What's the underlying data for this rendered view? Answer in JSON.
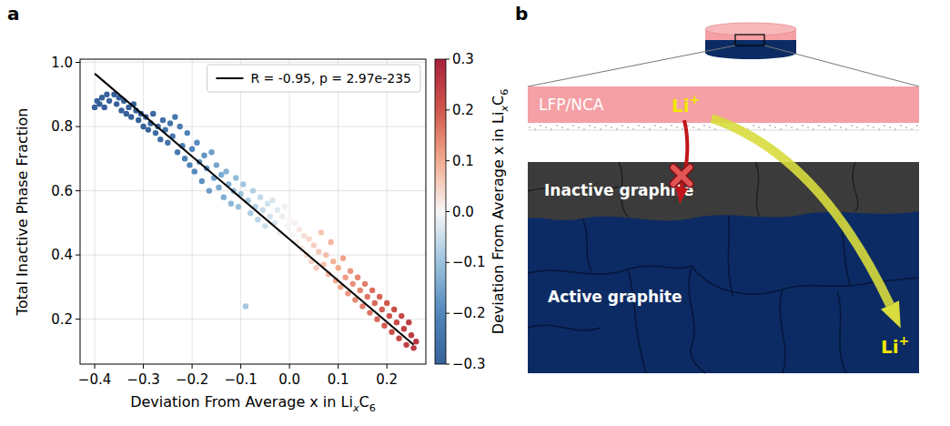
{
  "panel_labels": [
    "a",
    "b"
  ],
  "chart_data": {
    "type": "scatter",
    "xlabel": [
      "Deviation From Average x in Li",
      {
        "sub": "x",
        "italic": true
      },
      "C",
      {
        "sub": "6"
      }
    ],
    "ylabel": "Total Inactive Phase Fraction",
    "xlim": [
      -0.43,
      0.28
    ],
    "ylim": [
      0.06,
      1.01
    ],
    "xticks": [
      {
        "value": -0.4,
        "label": "−0.4"
      },
      {
        "value": -0.3,
        "label": "−0.3"
      },
      {
        "value": -0.2,
        "label": "−0.2"
      },
      {
        "value": -0.1,
        "label": "−0.1"
      },
      {
        "value": 0,
        "label": "0.0"
      },
      0.1,
      0.2
    ],
    "yticks": [
      0.2,
      0.4,
      0.6,
      0.8,
      {
        "value": 1,
        "label": "1.0"
      }
    ],
    "grid": true,
    "legend": "upper right",
    "colorbar": {
      "label": [
        "Deviation From Average x in Li",
        {
          "sub": "x",
          "italic": true
        },
        "C",
        {
          "sub": "6"
        }
      ],
      "range": [
        -0.3,
        0.3
      ],
      "ticks": [
        {
          "value": -0.3,
          "label": "−0.3"
        },
        {
          "value": -0.2,
          "label": "−0.2"
        },
        {
          "value": -0.1,
          "label": "−0.1"
        },
        {
          "value": 0,
          "label": "0.0"
        },
        0.1,
        0.2,
        0.3
      ]
    },
    "series": [
      {
        "type": "scatter",
        "marker": "circle",
        "x": [
          -0.4,
          -0.395,
          -0.39,
          -0.385,
          -0.38,
          -0.375,
          -0.37,
          -0.36,
          -0.355,
          -0.35,
          -0.345,
          -0.34,
          -0.335,
          -0.33,
          -0.325,
          -0.32,
          -0.315,
          -0.31,
          -0.305,
          -0.3,
          -0.295,
          -0.29,
          -0.285,
          -0.28,
          -0.275,
          -0.27,
          -0.265,
          -0.26,
          -0.255,
          -0.25,
          -0.245,
          -0.24,
          -0.235,
          -0.23,
          -0.225,
          -0.22,
          -0.215,
          -0.21,
          -0.205,
          -0.2,
          -0.195,
          -0.19,
          -0.185,
          -0.18,
          -0.175,
          -0.17,
          -0.165,
          -0.16,
          -0.155,
          -0.15,
          -0.145,
          -0.14,
          -0.135,
          -0.13,
          -0.125,
          -0.12,
          -0.115,
          -0.11,
          -0.105,
          -0.1,
          -0.095,
          -0.09,
          -0.085,
          -0.08,
          -0.075,
          -0.07,
          -0.065,
          -0.06,
          -0.055,
          -0.05,
          -0.045,
          -0.04,
          -0.035,
          -0.03,
          -0.025,
          -0.02,
          -0.015,
          -0.01,
          -0.005,
          0,
          0.005,
          0.01,
          0.015,
          0.02,
          0.025,
          0.03,
          0.035,
          0.04,
          0.045,
          0.05,
          0.055,
          0.06,
          0.065,
          0.07,
          0.075,
          0.08,
          0.085,
          0.09,
          0.095,
          0.1,
          0.105,
          0.11,
          0.115,
          0.12,
          0.125,
          0.13,
          0.135,
          0.14,
          0.145,
          0.15,
          0.155,
          0.16,
          0.165,
          0.17,
          0.175,
          0.18,
          0.185,
          0.19,
          0.195,
          0.2,
          0.205,
          0.21,
          0.215,
          0.22,
          0.225,
          0.23,
          0.235,
          0.24,
          0.245,
          0.25,
          0.255,
          0.26
        ],
        "values": [
          0.86,
          0.88,
          0.87,
          0.89,
          0.86,
          0.9,
          0.88,
          0.9,
          0.87,
          0.89,
          0.85,
          0.88,
          0.84,
          0.86,
          0.83,
          0.87,
          0.85,
          0.82,
          0.84,
          0.8,
          0.83,
          0.79,
          0.81,
          0.84,
          0.78,
          0.8,
          0.76,
          0.82,
          0.79,
          0.75,
          0.81,
          0.77,
          0.83,
          0.72,
          0.8,
          0.74,
          0.7,
          0.78,
          0.68,
          0.73,
          0.66,
          0.75,
          0.69,
          0.63,
          0.71,
          0.67,
          0.6,
          0.72,
          0.64,
          0.68,
          0.61,
          0.65,
          0.58,
          0.66,
          0.62,
          0.56,
          0.6,
          0.64,
          0.55,
          0.59,
          0.62,
          0.24,
          0.57,
          0.53,
          0.6,
          0.55,
          0.51,
          0.58,
          0.54,
          0.49,
          0.56,
          0.52,
          0.57,
          0.5,
          0.54,
          0.47,
          0.52,
          0.55,
          0.49,
          0.51,
          0.46,
          0.5,
          0.44,
          0.48,
          0.42,
          0.46,
          0.4,
          0.45,
          0.38,
          0.43,
          0.36,
          0.41,
          0.47,
          0.37,
          0.4,
          0.34,
          0.44,
          0.38,
          0.32,
          0.36,
          0.3,
          0.39,
          0.33,
          0.28,
          0.35,
          0.31,
          0.26,
          0.33,
          0.29,
          0.24,
          0.31,
          0.27,
          0.22,
          0.29,
          0.25,
          0.2,
          0.27,
          0.23,
          0.18,
          0.25,
          0.21,
          0.16,
          0.23,
          0.19,
          0.14,
          0.21,
          0.17,
          0.12,
          0.19,
          0.15,
          0.11,
          0.13
        ]
      },
      {
        "type": "line",
        "name": "R = -0.95, p = 2.97e-235",
        "color": "#000000",
        "line_style": "solid",
        "x": [
          -0.4,
          0.255
        ],
        "values": [
          0.965,
          0.12
        ]
      }
    ]
  },
  "diagram": {
    "layers": [
      {
        "label": "LFP/NCA"
      },
      {
        "label": "Inactive graphite"
      },
      {
        "label": "Active graphite"
      }
    ],
    "ion_labels": [
      [
        "Li",
        {
          "sup": "+"
        }
      ],
      [
        "Li",
        {
          "sup": "+"
        }
      ]
    ]
  }
}
